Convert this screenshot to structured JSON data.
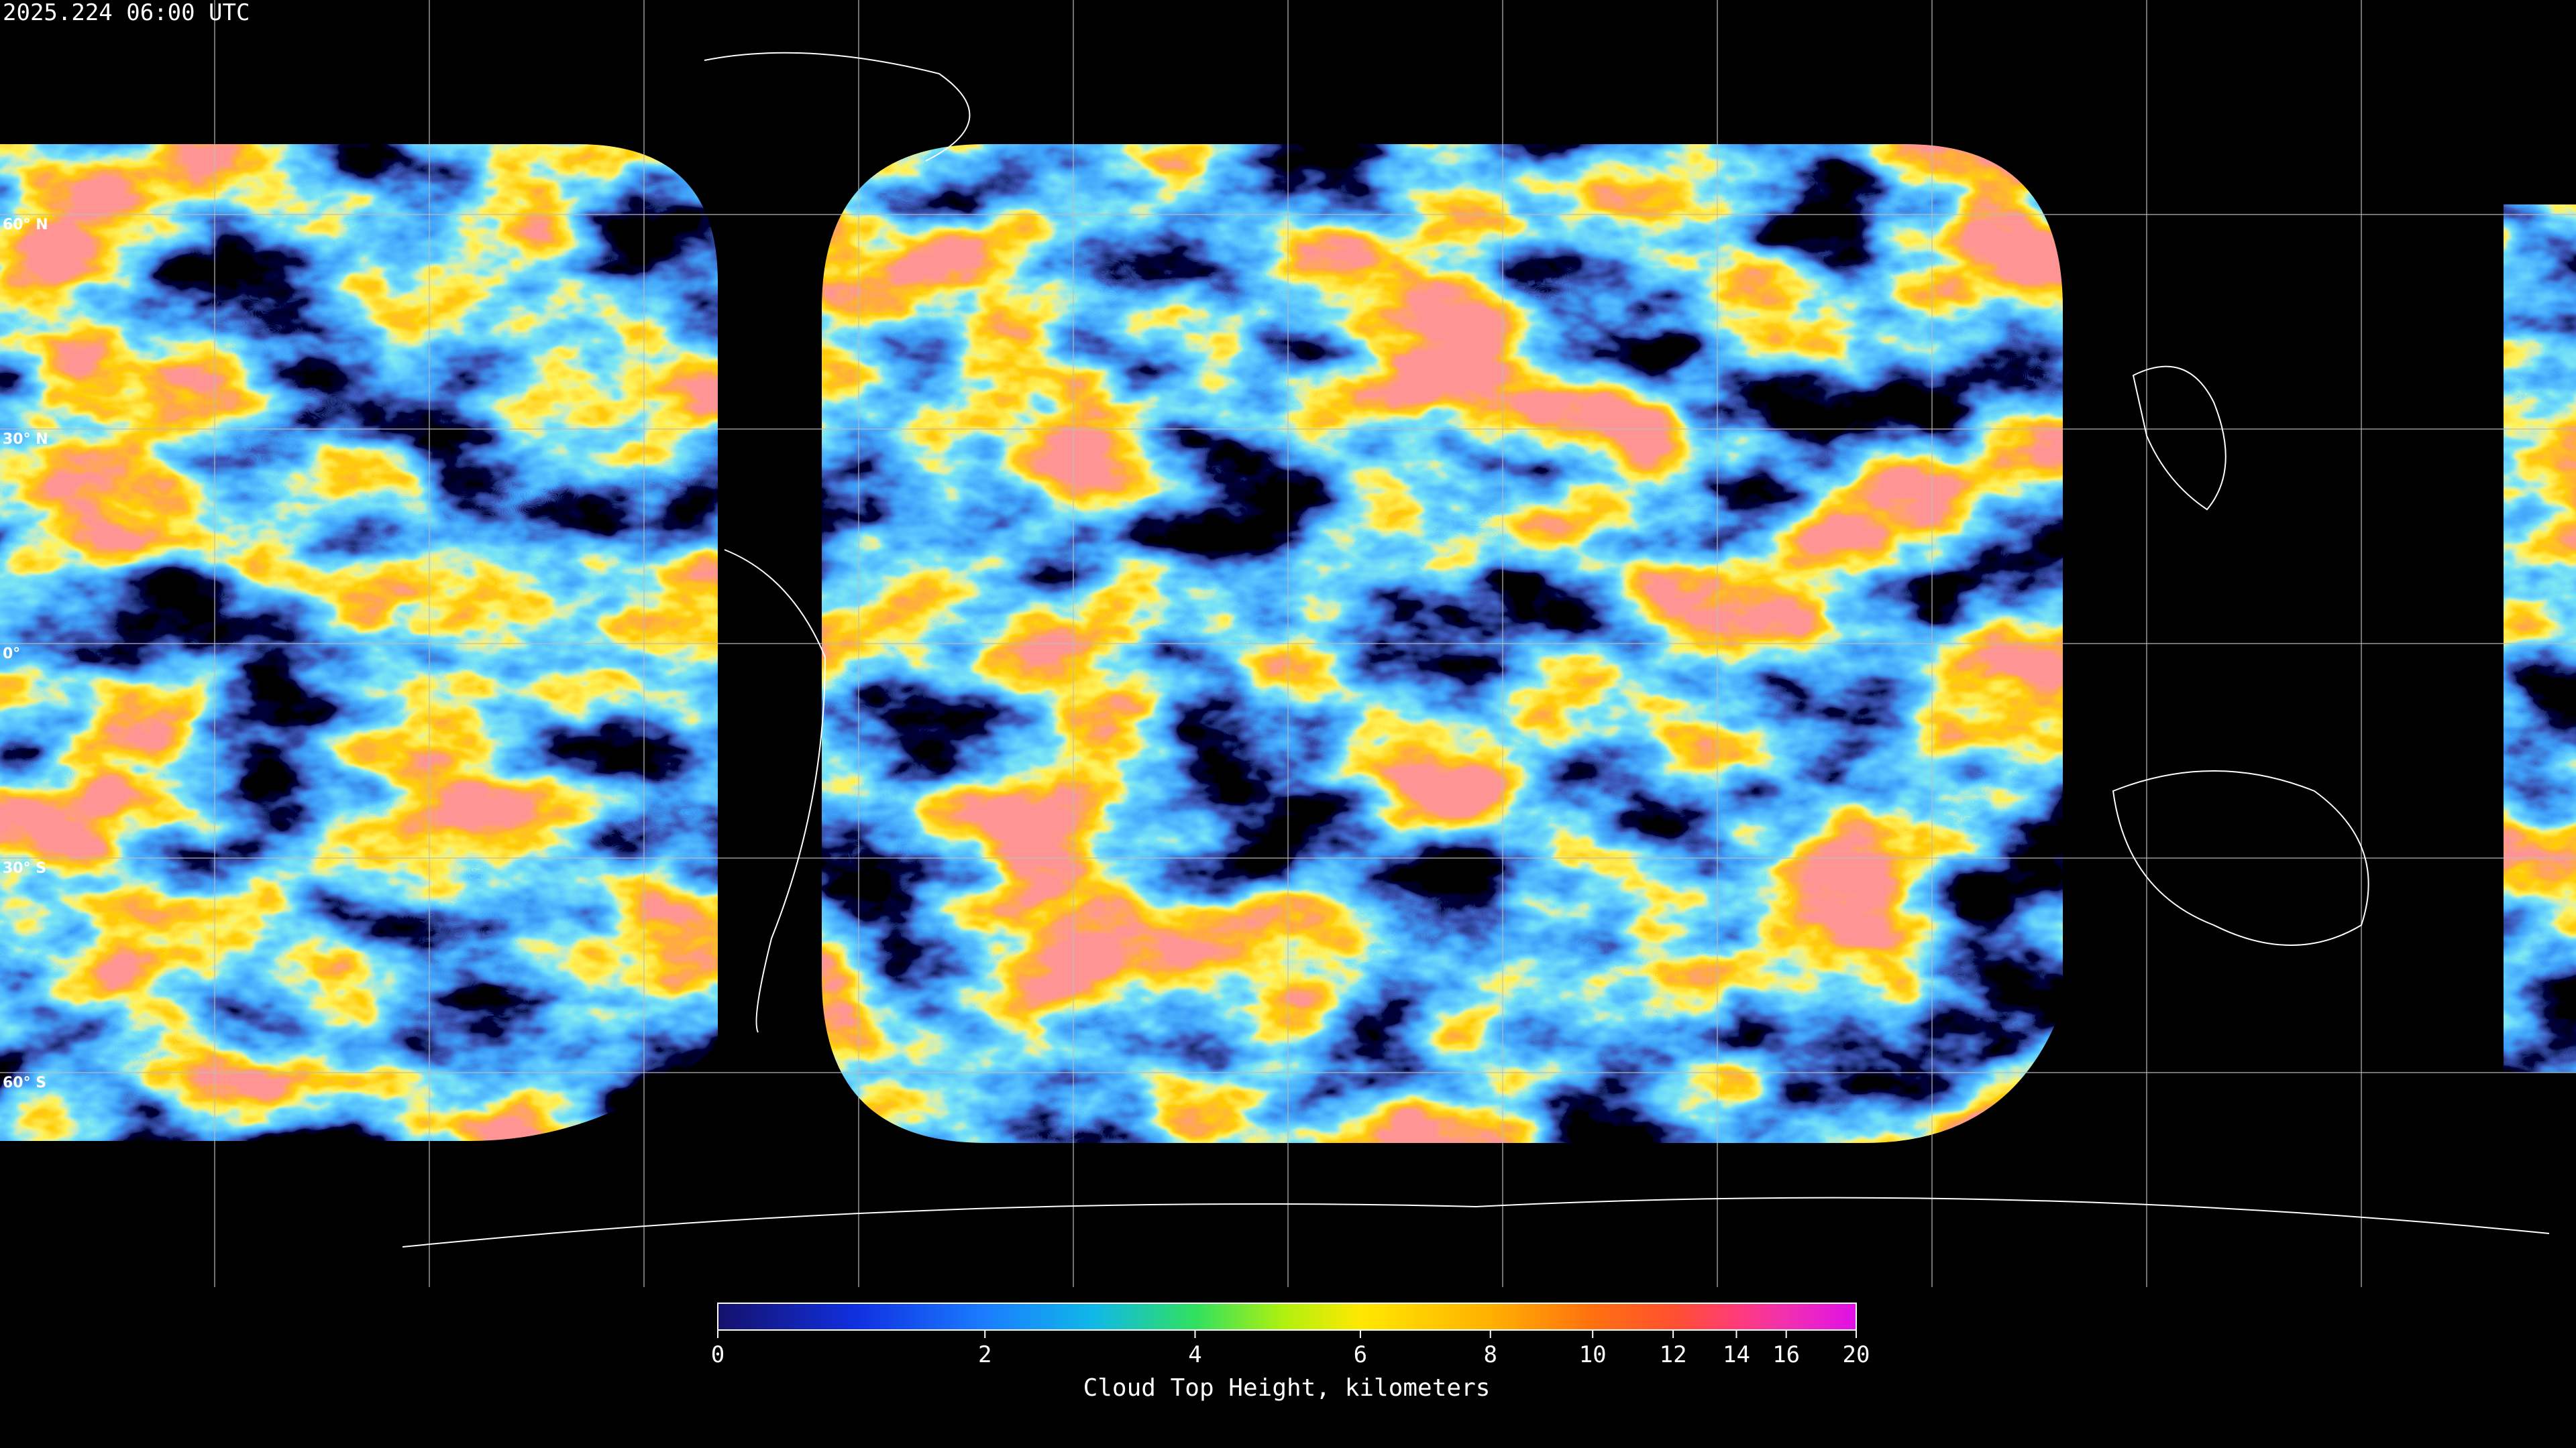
{
  "timestamp": "2025.224 06:00 UTC",
  "map": {
    "lat_lines": [
      {
        "value": 60,
        "label": "60° N"
      },
      {
        "value": 30,
        "label": "30° N"
      },
      {
        "value": 0,
        "label": "0°"
      },
      {
        "value": -30,
        "label": "30° S"
      },
      {
        "value": -60,
        "label": "60° S"
      }
    ]
  },
  "colorbar": {
    "label": "Cloud Top Height, kilometers",
    "range": [
      0,
      20
    ],
    "ticks": [
      0,
      2,
      4,
      6,
      8,
      10,
      12,
      14,
      16,
      20
    ],
    "scale": "exponential",
    "scale_rate": 0.12
  }
}
